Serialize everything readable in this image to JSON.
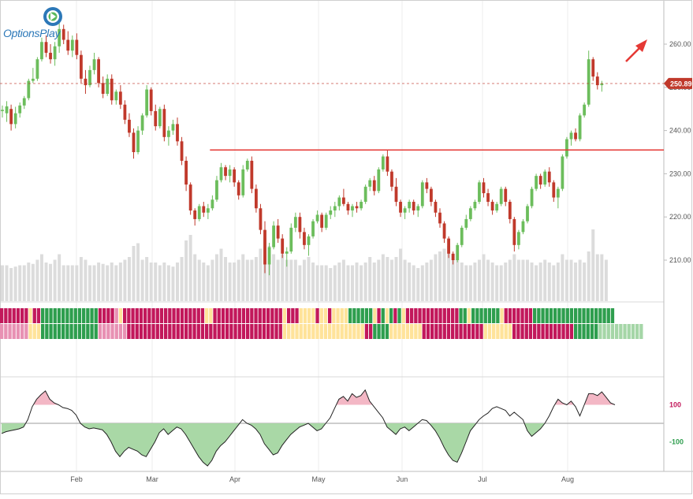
{
  "logo": {
    "text": "OptionsPlay",
    "colors": {
      "brand": "#2c78b8",
      "accent": "#5bb85c"
    }
  },
  "price": {
    "last_label": "250.89",
    "last_value": 250.89,
    "resistance_value": 235.5
  },
  "annotations": {
    "arrow": "up-right-arrow"
  },
  "colors": {
    "up": "#6cbd5c",
    "down": "#c0392b",
    "resistance": "#e53935",
    "lastPrice": "#c0392b",
    "volume": "#dcdcdc",
    "oscillator": "#222222",
    "overbought_fill": "#f3b7c5",
    "oversold_fill": "#a9d8a6"
  },
  "chart_data": [
    {
      "type": "candlestick",
      "x_labels": [
        "Feb",
        "Mar",
        "Apr",
        "May",
        "Jun",
        "Jul",
        "Aug"
      ],
      "y_ticks": [
        "210.00",
        "220.00",
        "230.00",
        "240.00",
        "250.00",
        "260.00"
      ],
      "ylim": [
        201,
        270
      ],
      "ohlc": [
        [
          244.5,
          245.8,
          243.0,
          244.8
        ],
        [
          244.0,
          246.8,
          242.0,
          245.6
        ],
        [
          245.0,
          246.0,
          240.0,
          241.5
        ],
        [
          241.5,
          245.5,
          240.5,
          244.0
        ],
        [
          244.0,
          246.5,
          243.0,
          245.8
        ],
        [
          245.8,
          248.0,
          245.0,
          247.5
        ],
        [
          247.5,
          252.0,
          247.0,
          251.5
        ],
        [
          251.5,
          254.5,
          251.0,
          252.0
        ],
        [
          252.0,
          257.0,
          251.5,
          256.5
        ],
        [
          256.5,
          261.5,
          256.0,
          260.5
        ],
        [
          260.5,
          262.0,
          257.0,
          258.0
        ],
        [
          258.0,
          260.0,
          255.5,
          256.5
        ],
        [
          256.5,
          260.5,
          255.0,
          259.5
        ],
        [
          259.5,
          265.0,
          258.0,
          263.5
        ],
        [
          263.5,
          264.5,
          260.0,
          261.0
        ],
        [
          261.0,
          263.0,
          257.5,
          258.5
        ],
        [
          258.5,
          262.0,
          257.0,
          261.0
        ],
        [
          261.0,
          262.5,
          256.5,
          257.5
        ],
        [
          257.5,
          258.5,
          251.0,
          252.0
        ],
        [
          252.0,
          254.0,
          248.5,
          250.5
        ],
        [
          250.5,
          255.0,
          250.0,
          254.0
        ],
        [
          254.0,
          258.0,
          253.0,
          256.5
        ],
        [
          256.5,
          257.0,
          250.0,
          251.0
        ],
        [
          251.0,
          252.5,
          247.5,
          248.5
        ],
        [
          248.5,
          253.0,
          248.0,
          252.0
        ],
        [
          252.0,
          253.0,
          246.0,
          247.0
        ],
        [
          247.0,
          249.5,
          246.0,
          249.0
        ],
        [
          249.0,
          250.5,
          245.0,
          246.0
        ],
        [
          246.0,
          247.0,
          241.5,
          242.5
        ],
        [
          242.5,
          244.0,
          238.5,
          239.5
        ],
        [
          239.5,
          240.5,
          233.5,
          235.0
        ],
        [
          235.0,
          241.0,
          234.5,
          240.0
        ],
        [
          240.0,
          244.0,
          239.0,
          243.5
        ],
        [
          243.5,
          250.5,
          243.0,
          249.5
        ],
        [
          249.5,
          250.0,
          243.5,
          244.5
        ],
        [
          244.5,
          246.0,
          240.0,
          241.0
        ],
        [
          241.0,
          245.5,
          240.5,
          245.0
        ],
        [
          245.0,
          246.0,
          237.5,
          238.5
        ],
        [
          238.5,
          241.0,
          236.5,
          240.0
        ],
        [
          240.0,
          242.5,
          239.0,
          241.5
        ],
        [
          241.5,
          243.0,
          236.5,
          237.5
        ],
        [
          237.5,
          238.5,
          232.0,
          233.0
        ],
        [
          233.0,
          234.0,
          226.0,
          227.5
        ],
        [
          227.5,
          228.0,
          220.5,
          221.5
        ],
        [
          221.5,
          222.0,
          218.0,
          219.5
        ],
        [
          219.5,
          223.0,
          219.0,
          222.5
        ],
        [
          222.5,
          223.5,
          220.0,
          221.0
        ],
        [
          221.0,
          223.0,
          219.5,
          222.0
        ],
        [
          222.0,
          225.0,
          221.5,
          224.0
        ],
        [
          224.0,
          229.5,
          223.5,
          228.5
        ],
        [
          228.5,
          232.5,
          228.0,
          231.5
        ],
        [
          231.5,
          232.0,
          228.5,
          229.5
        ],
        [
          229.5,
          232.0,
          228.0,
          231.0
        ],
        [
          231.0,
          231.5,
          227.0,
          228.0
        ],
        [
          228.0,
          228.5,
          224.0,
          225.0
        ],
        [
          225.0,
          232.0,
          224.5,
          231.0
        ],
        [
          231.0,
          233.5,
          230.5,
          233.0
        ],
        [
          233.0,
          234.0,
          225.5,
          226.5
        ],
        [
          226.5,
          227.5,
          221.0,
          222.0
        ],
        [
          222.0,
          223.0,
          216.0,
          217.0
        ],
        [
          217.0,
          219.0,
          207.0,
          209.0
        ],
        [
          209.0,
          214.0,
          206.5,
          213.0
        ],
        [
          213.0,
          219.0,
          212.5,
          218.0
        ],
        [
          218.0,
          219.5,
          214.0,
          215.0
        ],
        [
          215.0,
          216.0,
          210.5,
          211.5
        ],
        [
          211.5,
          213.0,
          208.5,
          212.0
        ],
        [
          212.0,
          218.5,
          211.5,
          217.5
        ],
        [
          217.5,
          221.0,
          216.5,
          220.0
        ],
        [
          220.0,
          221.0,
          215.0,
          216.5
        ],
        [
          216.5,
          217.5,
          212.5,
          213.5
        ],
        [
          213.5,
          216.0,
          211.0,
          215.5
        ],
        [
          215.5,
          219.5,
          215.0,
          219.0
        ],
        [
          219.0,
          221.5,
          218.5,
          220.5
        ],
        [
          220.5,
          221.0,
          216.5,
          217.5
        ],
        [
          217.5,
          221.0,
          217.0,
          220.5
        ],
        [
          220.5,
          222.5,
          219.5,
          221.5
        ],
        [
          221.5,
          223.5,
          220.0,
          222.5
        ],
        [
          222.5,
          225.0,
          221.5,
          224.5
        ],
        [
          224.5,
          226.5,
          222.5,
          223.0
        ],
        [
          223.0,
          223.5,
          220.5,
          221.5
        ],
        [
          221.5,
          223.0,
          220.0,
          222.5
        ],
        [
          222.5,
          223.5,
          221.0,
          222.0
        ],
        [
          222.0,
          224.0,
          221.5,
          223.5
        ],
        [
          223.5,
          227.5,
          223.0,
          227.0
        ],
        [
          227.0,
          229.0,
          226.0,
          228.5
        ],
        [
          228.5,
          229.5,
          225.0,
          226.0
        ],
        [
          226.0,
          231.5,
          225.5,
          231.0
        ],
        [
          231.0,
          234.5,
          230.5,
          234.0
        ],
        [
          234.0,
          235.5,
          229.5,
          230.5
        ],
        [
          230.5,
          231.0,
          226.0,
          227.0
        ],
        [
          227.0,
          229.0,
          222.5,
          223.5
        ],
        [
          223.5,
          224.0,
          220.0,
          221.0
        ],
        [
          221.0,
          222.5,
          219.5,
          222.0
        ],
        [
          222.0,
          224.0,
          221.0,
          223.5
        ],
        [
          223.5,
          224.0,
          220.5,
          221.5
        ],
        [
          221.5,
          223.0,
          220.0,
          222.5
        ],
        [
          222.5,
          228.5,
          222.0,
          228.0
        ],
        [
          228.0,
          229.0,
          225.5,
          226.5
        ],
        [
          226.5,
          227.0,
          222.5,
          223.5
        ],
        [
          223.5,
          224.0,
          220.0,
          221.0
        ],
        [
          221.0,
          222.0,
          217.5,
          218.5
        ],
        [
          218.5,
          219.0,
          214.0,
          215.0
        ],
        [
          215.0,
          215.5,
          210.5,
          211.5
        ],
        [
          211.5,
          212.0,
          209.0,
          210.0
        ],
        [
          210.0,
          214.0,
          209.5,
          213.5
        ],
        [
          213.5,
          218.0,
          213.0,
          217.5
        ],
        [
          217.5,
          220.5,
          217.0,
          219.5
        ],
        [
          219.5,
          222.5,
          219.0,
          222.0
        ],
        [
          222.0,
          224.0,
          221.5,
          223.5
        ],
        [
          223.5,
          228.5,
          223.0,
          228.0
        ],
        [
          228.0,
          229.0,
          224.5,
          225.5
        ],
        [
          225.5,
          226.5,
          222.5,
          223.5
        ],
        [
          223.5,
          224.0,
          220.5,
          221.5
        ],
        [
          221.5,
          223.5,
          221.0,
          223.0
        ],
        [
          223.0,
          227.0,
          222.5,
          226.5
        ],
        [
          226.5,
          227.0,
          222.5,
          223.5
        ],
        [
          223.5,
          224.0,
          218.5,
          219.5
        ],
        [
          219.5,
          220.0,
          212.0,
          213.5
        ],
        [
          213.5,
          217.0,
          212.5,
          216.5
        ],
        [
          216.5,
          219.5,
          216.0,
          219.0
        ],
        [
          219.0,
          223.0,
          218.5,
          222.5
        ],
        [
          222.5,
          227.0,
          222.0,
          226.5
        ],
        [
          226.5,
          230.0,
          226.0,
          229.5
        ],
        [
          229.5,
          230.0,
          226.5,
          227.5
        ],
        [
          227.5,
          231.0,
          227.0,
          230.5
        ],
        [
          230.5,
          231.5,
          227.0,
          228.0
        ],
        [
          228.0,
          228.5,
          223.5,
          224.5
        ],
        [
          224.5,
          227.0,
          222.0,
          226.5
        ],
        [
          226.5,
          234.5,
          226.0,
          234.0
        ],
        [
          234.0,
          238.5,
          233.5,
          238.0
        ],
        [
          238.0,
          240.0,
          236.5,
          239.5
        ],
        [
          239.5,
          240.5,
          237.5,
          238.0
        ],
        [
          238.0,
          244.0,
          237.5,
          243.5
        ],
        [
          243.5,
          246.5,
          243.0,
          246.0
        ],
        [
          246.0,
          258.5,
          245.5,
          256.5
        ],
        [
          256.5,
          257.0,
          251.5,
          252.5
        ],
        [
          252.5,
          253.5,
          249.5,
          250.5
        ],
        [
          250.5,
          251.5,
          249.0,
          250.89
        ]
      ],
      "volume": [
        26,
        26,
        24,
        25,
        26,
        26,
        28,
        27,
        30,
        34,
        28,
        27,
        30,
        34,
        26,
        26,
        26,
        26,
        32,
        30,
        26,
        26,
        28,
        27,
        26,
        28,
        26,
        28,
        30,
        32,
        40,
        42,
        30,
        32,
        28,
        28,
        26,
        28,
        26,
        25,
        28,
        32,
        44,
        48,
        34,
        30,
        28,
        26,
        30,
        34,
        38,
        32,
        28,
        28,
        30,
        34,
        30,
        30,
        32,
        38,
        46,
        40,
        34,
        30,
        34,
        30,
        30,
        30,
        26,
        30,
        32,
        28,
        26,
        26,
        26,
        24,
        26,
        28,
        30,
        26,
        26,
        28,
        26,
        28,
        32,
        28,
        30,
        34,
        32,
        30,
        32,
        38,
        30,
        28,
        26,
        24,
        26,
        28,
        30,
        34,
        36,
        38,
        40,
        34,
        30,
        28,
        26,
        26,
        28,
        30,
        34,
        30,
        28,
        26,
        26,
        28,
        30,
        34,
        30,
        30,
        30,
        28,
        26,
        28,
        30,
        28,
        26,
        28,
        34,
        30,
        30,
        28,
        30,
        28,
        36,
        52,
        34,
        34,
        30
      ],
      "resistance": {
        "x_start_index": 46,
        "value": 235.5
      }
    },
    {
      "type": "heatmap",
      "rows": 2,
      "palette": {
        "strong-bear": "#c2185b",
        "bear": "#e891b3",
        "neutral": "#ffe39a",
        "bull": "#a5d6a7",
        "strong-bull": "#2e9e4e"
      },
      "row1": "RRRRRRRNRRGGGGGGGGGGGGGGRRRRPNRRRRRRRRRRRRRRRRRRRRNNRRRRRRRRRRRRRRRRRNRRRNNNNRNNRNNNNGGGGGGNRGNGRGNRRRRRRRRRRRRRGGNGGGGGGGNRRRRRRRGGGGGGGGGGGGGGGGGGGG",
      "row2": "PPPPPPPNNNGGGGGGGGGGGGGGPPPPPPPRRRRRRRRRRRRRRRRRRRRRRRRRRRRRRRRRRRRRRNNNNNNNNNNNNNNNNNNNNRRGGGGNNNNNNNNRRRRRRRRRRRRRRRNNNNNNNRRRRRRRRRRRRRRRGGGGGGLLLLLLLLLLL"
    },
    {
      "type": "line",
      "name": "",
      "y_ticks": [
        "100",
        "-100"
      ],
      "ylim": [
        -240,
        240
      ],
      "values": [
        -55,
        -45,
        -40,
        -35,
        -30,
        -20,
        20,
        90,
        130,
        155,
        175,
        130,
        110,
        100,
        85,
        80,
        70,
        45,
        0,
        -20,
        -30,
        -25,
        -30,
        -35,
        -60,
        -100,
        -150,
        -180,
        -150,
        -130,
        -140,
        -150,
        -170,
        -180,
        -140,
        -100,
        -50,
        -30,
        -60,
        -40,
        -20,
        -30,
        -60,
        -100,
        -140,
        -180,
        -210,
        -230,
        -200,
        -150,
        -120,
        -100,
        -70,
        -40,
        -10,
        20,
        0,
        -10,
        -30,
        -60,
        -110,
        -140,
        -170,
        -160,
        -120,
        -90,
        -60,
        -40,
        -20,
        -10,
        0,
        -20,
        -40,
        -30,
        0,
        30,
        80,
        130,
        145,
        120,
        160,
        140,
        150,
        180,
        120,
        90,
        60,
        30,
        -20,
        -40,
        -60,
        -30,
        -20,
        -40,
        -20,
        0,
        20,
        15,
        -10,
        -40,
        -80,
        -130,
        -170,
        -200,
        -210,
        -160,
        -100,
        -40,
        -10,
        20,
        40,
        55,
        80,
        90,
        80,
        70,
        40,
        60,
        40,
        20,
        -40,
        -70,
        -50,
        -30,
        0,
        40,
        90,
        130,
        110,
        100,
        120,
        90,
        40,
        100,
        160,
        160,
        150,
        170,
        140,
        110,
        100
      ]
    }
  ]
}
